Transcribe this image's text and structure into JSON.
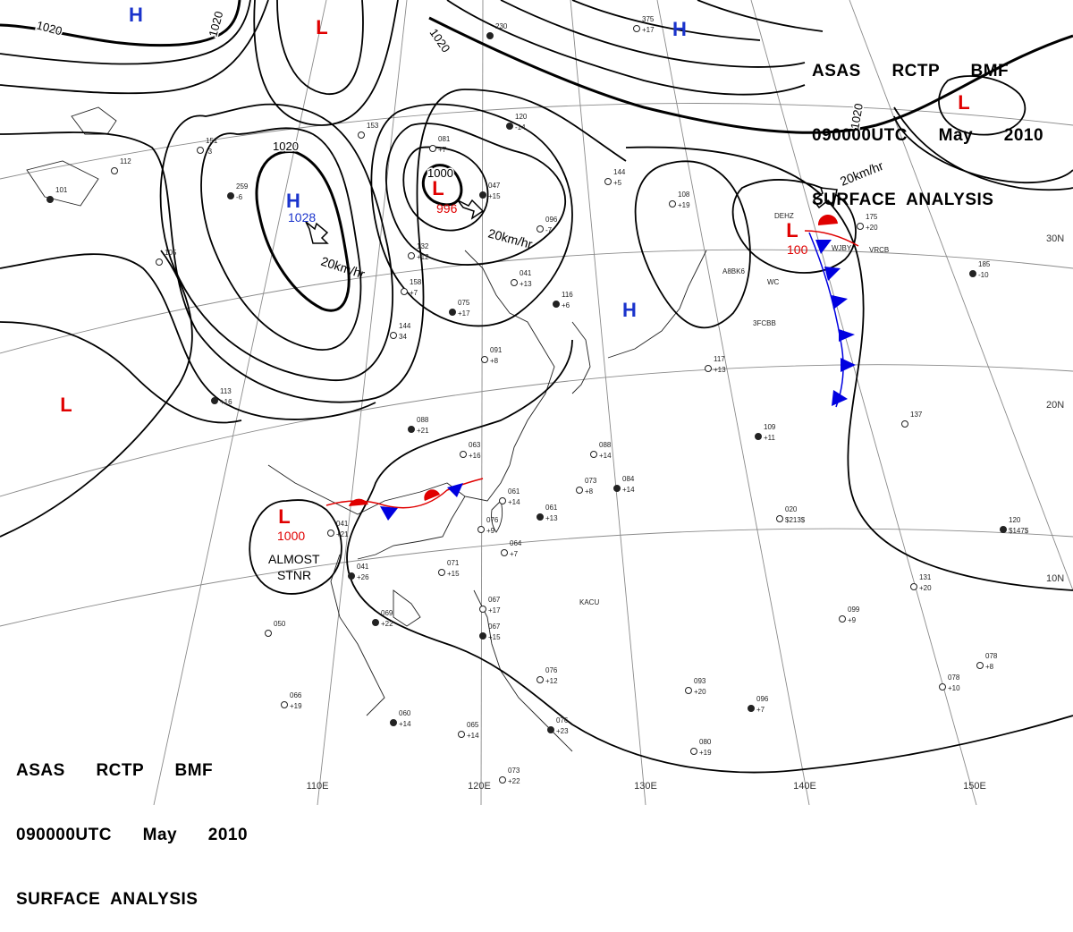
{
  "titles": {
    "top": {
      "line1": "ASAS      RCTP      BMF",
      "line2": "090000UTC      May      2010",
      "line3": "SURFACE  ANALYSIS"
    },
    "bottom": {
      "line1": "ASAS      RCTP      BMF",
      "line2": "090000UTC      May      2010",
      "line3": "SURFACE  ANALYSIS"
    }
  },
  "longitude_labels": [
    "110E",
    "120E",
    "130E",
    "140E",
    "150E"
  ],
  "latitude_labels": [
    "30N",
    "20N",
    "10N"
  ],
  "isobar_labels": [
    "1020",
    "1020",
    "1020",
    "1020",
    "1020",
    "1000"
  ],
  "pressure_systems": [
    {
      "letter": "H",
      "value": "1028",
      "color": "#1a33cc",
      "value_color": "#1a33cc"
    },
    {
      "letter": "L",
      "value": "996",
      "color": "#e00000",
      "value_color": "#e00000"
    },
    {
      "letter": "L",
      "value": "1000",
      "color": "#e00000",
      "value_color": "#e00000"
    },
    {
      "letter": "L",
      "value": "100",
      "color": "#e00000",
      "value_color": "#e00000"
    },
    {
      "letter": "H",
      "value": "",
      "color": "#1a33cc",
      "value_color": "#1a33cc"
    },
    {
      "letter": "H",
      "value": "",
      "color": "#1a33cc",
      "value_color": "#1a33cc"
    },
    {
      "letter": "H",
      "value": "",
      "color": "#1a33cc",
      "value_color": "#1a33cc"
    },
    {
      "letter": "L",
      "value": "",
      "color": "#e00000",
      "value_color": "#e00000"
    },
    {
      "letter": "L",
      "value": "",
      "color": "#e00000",
      "value_color": "#e00000"
    },
    {
      "letter": "L",
      "value": "",
      "color": "#e00000",
      "value_color": "#e00000"
    }
  ],
  "movement_labels": [
    "20km/hr",
    "20km/hr",
    "20km/hr"
  ],
  "front_note": {
    "line1": "ALMOST",
    "line2": "STNR"
  },
  "station_codes": [
    "DEHZ",
    "WJBY",
    "VRCB",
    "A8BK6",
    "WC",
    "3FCBB",
    "KACU"
  ],
  "station_plots": [
    {
      "top": "230",
      "bottom": ""
    },
    {
      "top": "375",
      "bottom": "+17"
    },
    {
      "top": "081",
      "bottom": "+7"
    },
    {
      "top": "047",
      "bottom": "+15"
    },
    {
      "top": "096",
      "bottom": "-7"
    },
    {
      "top": "144",
      "bottom": "+5"
    },
    {
      "top": "120",
      "bottom": "-14"
    },
    {
      "top": "108",
      "bottom": "+19"
    },
    {
      "top": "175",
      "bottom": "+20"
    },
    {
      "top": "185",
      "bottom": "-10"
    },
    {
      "top": "132",
      "bottom": "+12"
    },
    {
      "top": "041",
      "bottom": "+13"
    },
    {
      "top": "075",
      "bottom": "+17"
    },
    {
      "top": "158",
      "bottom": "+7"
    },
    {
      "top": "144",
      "bottom": "34"
    },
    {
      "top": "116",
      "bottom": "+6"
    },
    {
      "top": "091",
      "bottom": "+8"
    },
    {
      "top": "117",
      "bottom": "+13"
    },
    {
      "top": "088",
      "bottom": "+21"
    },
    {
      "top": "063",
      "bottom": "+16"
    },
    {
      "top": "088",
      "bottom": "+14"
    },
    {
      "top": "109",
      "bottom": "+11"
    },
    {
      "top": "137",
      "bottom": ""
    },
    {
      "top": "061",
      "bottom": "+14"
    },
    {
      "top": "061",
      "bottom": "+13"
    },
    {
      "top": "076",
      "bottom": "+9"
    },
    {
      "top": "073",
      "bottom": "+8"
    },
    {
      "top": "084",
      "bottom": "+14"
    },
    {
      "top": "064",
      "bottom": "+7"
    },
    {
      "top": "041",
      "bottom": "+21"
    },
    {
      "top": "041",
      "bottom": "+26"
    },
    {
      "top": "071",
      "bottom": "+15"
    },
    {
      "top": "020",
      "bottom": "$213$"
    },
    {
      "top": "120",
      "bottom": "$147$"
    },
    {
      "top": "078",
      "bottom": "+10"
    },
    {
      "top": "131",
      "bottom": "+20"
    },
    {
      "top": "069",
      "bottom": "+22"
    },
    {
      "top": "050",
      "bottom": ""
    },
    {
      "top": "067",
      "bottom": "+17"
    },
    {
      "top": "067",
      "bottom": "+15"
    },
    {
      "top": "099",
      "bottom": "+9"
    },
    {
      "top": "093",
      "bottom": "+20"
    },
    {
      "top": "096",
      "bottom": "+7"
    },
    {
      "top": "078",
      "bottom": "+8"
    },
    {
      "top": "066",
      "bottom": "+19"
    },
    {
      "top": "060",
      "bottom": "+14"
    },
    {
      "top": "065",
      "bottom": "+14"
    },
    {
      "top": "076",
      "bottom": "+12"
    },
    {
      "top": "076",
      "bottom": "+23"
    },
    {
      "top": "080",
      "bottom": "+19"
    },
    {
      "top": "073",
      "bottom": "+22"
    },
    {
      "top": "259",
      "bottom": "-6"
    },
    {
      "top": "151",
      "bottom": "-3"
    },
    {
      "top": "105",
      "bottom": ""
    },
    {
      "top": "101",
      "bottom": ""
    },
    {
      "top": "112",
      "bottom": ""
    },
    {
      "top": "153",
      "bottom": ""
    },
    {
      "top": "113",
      "bottom": "+16"
    }
  ],
  "colors": {
    "isobar": "#000000",
    "grid": "#808080",
    "coast": "#202020",
    "warm_front": "#e00000",
    "cold_front": "#0000e0",
    "high": "#1a33cc",
    "low": "#e00000"
  }
}
